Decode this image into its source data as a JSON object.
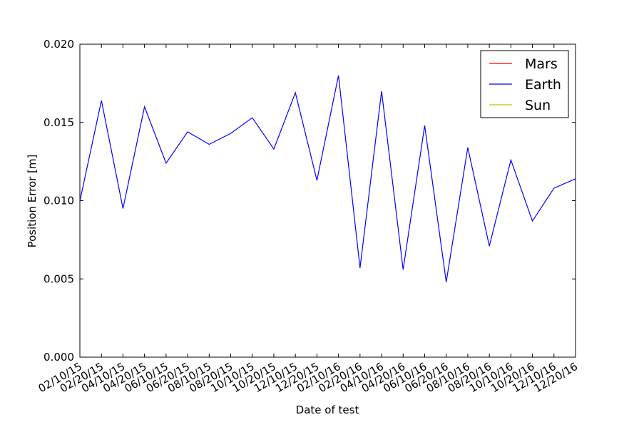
{
  "chart_data": {
    "type": "line",
    "xlabel": "Date of test",
    "ylabel": "Position Error [m]",
    "categories": [
      "02/10/15",
      "02/20/15",
      "04/10/15",
      "04/20/15",
      "06/10/15",
      "06/20/15",
      "08/10/15",
      "08/20/15",
      "10/10/15",
      "10/20/15",
      "12/10/15",
      "12/20/15",
      "02/10/16",
      "02/20/16",
      "04/10/16",
      "04/20/16",
      "06/10/16",
      "06/20/16",
      "08/10/16",
      "08/20/16",
      "10/10/16",
      "10/20/16",
      "12/10/16",
      "12/20/16"
    ],
    "series": [
      {
        "name": "Mars",
        "color": "#ff0000",
        "values": [
          null,
          null,
          null,
          null,
          null,
          null,
          null,
          null,
          null,
          null,
          null,
          null,
          null,
          null,
          null,
          null,
          null,
          null,
          null,
          null,
          null,
          null,
          null,
          null
        ]
      },
      {
        "name": "Earth",
        "color": "#0000ff",
        "values": [
          0.00998,
          0.0164,
          0.0095,
          0.016,
          0.0124,
          0.0144,
          0.0136,
          0.0143,
          0.0153,
          0.0133,
          0.0169,
          0.0113,
          0.018,
          0.0057,
          0.017,
          0.0056,
          0.0148,
          0.0048,
          0.0134,
          0.0071,
          0.0126,
          0.0087,
          0.0108,
          0.0114
        ]
      },
      {
        "name": "Sun",
        "color": "#bfbf00",
        "values": [
          null,
          null,
          null,
          null,
          null,
          null,
          null,
          null,
          null,
          null,
          null,
          null,
          null,
          null,
          null,
          null,
          null,
          null,
          null,
          null,
          null,
          null,
          null,
          null
        ]
      }
    ],
    "ylim": [
      0,
      0.02
    ],
    "yticks": [
      {
        "value": 0,
        "label": "0.000"
      },
      0.005,
      {
        "value": 0.01,
        "label": "0.010"
      },
      0.015,
      {
        "value": 0.02,
        "label": "0.020"
      }
    ],
    "legend": "upper right"
  }
}
